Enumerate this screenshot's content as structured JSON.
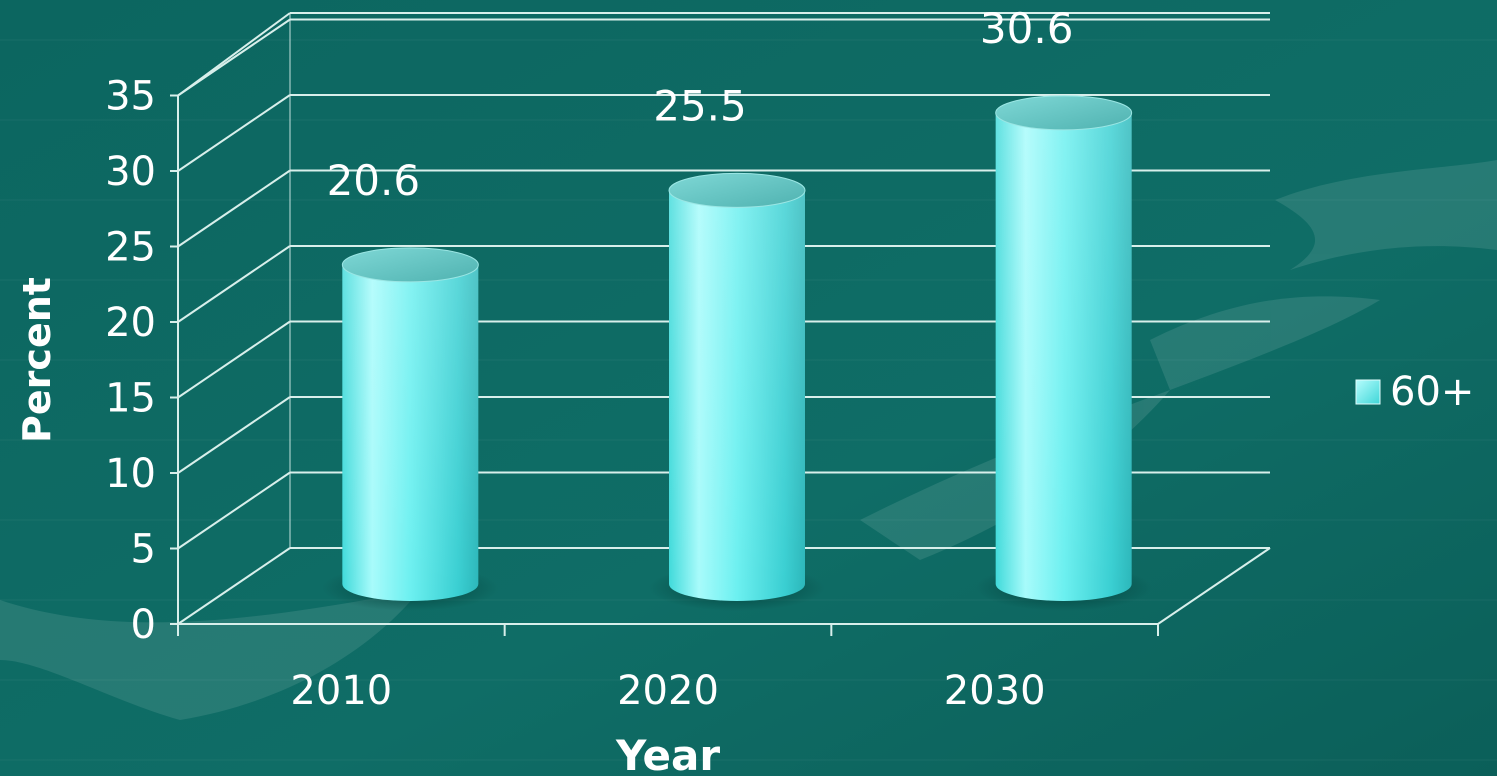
{
  "chart_data": {
    "type": "bar",
    "style": "3d-cylinder",
    "categories": [
      "2010",
      "2020",
      "2030"
    ],
    "series": [
      {
        "name": "60+",
        "values": [
          20.6,
          25.5,
          30.6
        ],
        "color": "#4fe6e8"
      }
    ],
    "data_labels": [
      "20.6",
      "25.5",
      "30.6"
    ],
    "xlabel": "Year",
    "ylabel": "Percent",
    "ylim": [
      0,
      35
    ],
    "yticks": [
      "0",
      "5",
      "10",
      "15",
      "20",
      "25",
      "30",
      "35"
    ],
    "grid": true,
    "legend_position": "right"
  },
  "theme": {
    "background": "#0f6a63",
    "text_color": "#ffffff",
    "grid_color": "#d8efeb"
  }
}
